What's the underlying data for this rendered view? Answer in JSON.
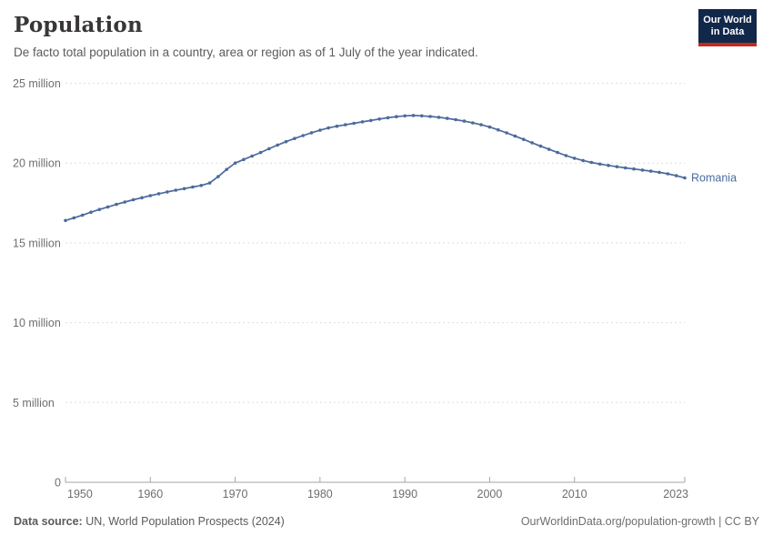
{
  "header": {
    "title": "Population",
    "subtitle": "De facto total population in a country, area or region as of 1 July of the year indicated."
  },
  "logo": {
    "line1": "Our World",
    "line2": "in Data"
  },
  "chart_data": {
    "type": "line",
    "title": "Population",
    "unit": "million",
    "ylim": [
      0,
      25
    ],
    "grid": true,
    "legend_position": "end-of-line",
    "yticks": [
      {
        "value": 0,
        "label": "0"
      },
      {
        "value": 5,
        "label": "5 million"
      },
      {
        "value": 10,
        "label": "10 million"
      },
      {
        "value": 15,
        "label": "15 million"
      },
      {
        "value": 20,
        "label": "20 million"
      },
      {
        "value": 25,
        "label": "25 million"
      }
    ],
    "xticks": [
      1950,
      1960,
      1970,
      1980,
      1990,
      2000,
      2010,
      2023
    ],
    "x": [
      1950,
      1951,
      1952,
      1953,
      1954,
      1955,
      1956,
      1957,
      1958,
      1959,
      1960,
      1961,
      1962,
      1963,
      1964,
      1965,
      1966,
      1967,
      1968,
      1969,
      1970,
      1971,
      1972,
      1973,
      1974,
      1975,
      1976,
      1977,
      1978,
      1979,
      1980,
      1981,
      1982,
      1983,
      1984,
      1985,
      1986,
      1987,
      1988,
      1989,
      1990,
      1991,
      1992,
      1993,
      1994,
      1995,
      1996,
      1997,
      1998,
      1999,
      2000,
      2001,
      2002,
      2003,
      2004,
      2005,
      2006,
      2007,
      2008,
      2009,
      2010,
      2011,
      2012,
      2013,
      2014,
      2015,
      2016,
      2017,
      2018,
      2019,
      2020,
      2021,
      2022,
      2023
    ],
    "series": [
      {
        "name": "Romania",
        "color": "#4c6a9c",
        "values": [
          16.4,
          16.57,
          16.74,
          16.92,
          17.09,
          17.25,
          17.41,
          17.56,
          17.7,
          17.83,
          17.96,
          18.08,
          18.19,
          18.3,
          18.4,
          18.5,
          18.6,
          18.75,
          19.15,
          19.6,
          20.0,
          20.22,
          20.44,
          20.66,
          20.9,
          21.13,
          21.34,
          21.54,
          21.72,
          21.9,
          22.06,
          22.2,
          22.31,
          22.4,
          22.49,
          22.58,
          22.67,
          22.76,
          22.84,
          22.91,
          22.96,
          22.98,
          22.96,
          22.92,
          22.87,
          22.8,
          22.72,
          22.63,
          22.52,
          22.4,
          22.26,
          22.08,
          21.89,
          21.69,
          21.48,
          21.27,
          21.06,
          20.86,
          20.66,
          20.47,
          20.3,
          20.16,
          20.04,
          19.94,
          19.85,
          19.77,
          19.7,
          19.63,
          19.56,
          19.49,
          19.42,
          19.33,
          19.21,
          19.07
        ]
      }
    ]
  },
  "colors": {
    "line": "#4c6a9c",
    "axis": "#a5a5a5",
    "grid": "#dedede",
    "tick_text": "#6e6e6e",
    "logo_bg": "#12284a",
    "logo_red": "#c5281c"
  },
  "footer": {
    "datasource_label": "Data source:",
    "datasource_value": "UN, World Population Prospects (2024)",
    "link": "OurWorldinData.org/population-growth | CC BY"
  }
}
